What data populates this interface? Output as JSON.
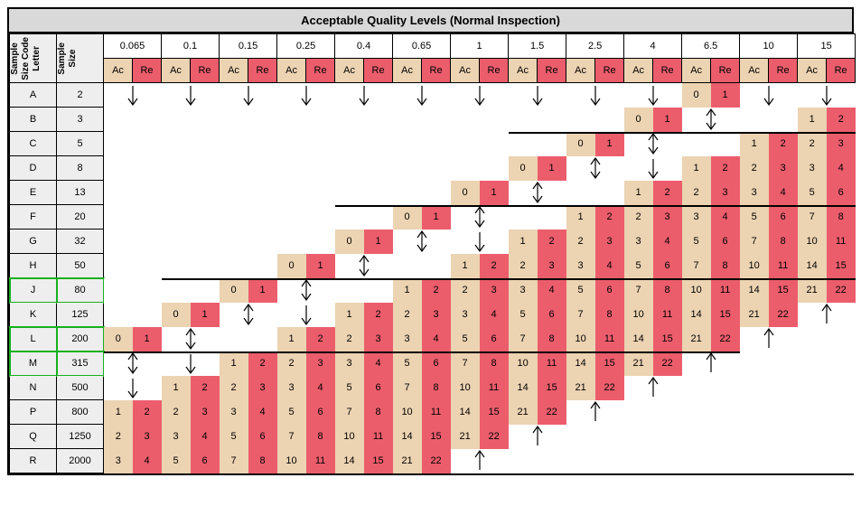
{
  "title": "Acceptable Quality Levels (Normal Inspection)",
  "headers": {
    "code_letter": "Sample\nSize Code\nLetter",
    "sample_size": "Sample\nSize",
    "ac": "Ac",
    "re": "Re"
  },
  "aql_levels": [
    "0.065",
    "0.1",
    "0.15",
    "0.25",
    "0.4",
    "0.65",
    "1",
    "1.5",
    "2.5",
    "4",
    "6.5",
    "10",
    "15"
  ],
  "codes": [
    "A",
    "B",
    "C",
    "D",
    "E",
    "F",
    "G",
    "H",
    "J",
    "K",
    "L",
    "M",
    "N",
    "P",
    "Q",
    "R"
  ],
  "sizes": [
    "2",
    "3",
    "5",
    "8",
    "13",
    "20",
    "32",
    "50",
    "80",
    "125",
    "200",
    "315",
    "500",
    "800",
    "1250",
    "2000"
  ],
  "highlighted_rows": [
    "J",
    "L",
    "M"
  ],
  "colors": {
    "ac_bg": "#ecd3b2",
    "re_bg": "#ec5d6c",
    "header_bg": "#d9d9d9",
    "left_bg": "#eeeeee",
    "highlight": "#17b01f"
  },
  "arrow_glyphs": {
    "down": "↓",
    "up": "↑",
    "updown": "↕"
  },
  "grid_comment": "Each row: 13 AQL columns. Per column: {t:'v',ac,re} | {t:'a',d:'down'|'up'|'updown'} | {t:'b'} blank. 'line' marks thick top border start.",
  "grid": {
    "A": [
      {
        "t": "a",
        "d": "down"
      },
      {
        "t": "a",
        "d": "down"
      },
      {
        "t": "a",
        "d": "down"
      },
      {
        "t": "a",
        "d": "down"
      },
      {
        "t": "a",
        "d": "down"
      },
      {
        "t": "a",
        "d": "down"
      },
      {
        "t": "a",
        "d": "down"
      },
      {
        "t": "a",
        "d": "down"
      },
      {
        "t": "a",
        "d": "down"
      },
      {
        "t": "a",
        "d": "down"
      },
      {
        "t": "v",
        "ac": "0",
        "re": "1"
      },
      {
        "t": "a",
        "d": "down"
      },
      {
        "t": "a",
        "d": "down"
      }
    ],
    "B": [
      {
        "t": "b"
      },
      {
        "t": "b"
      },
      {
        "t": "b"
      },
      {
        "t": "b"
      },
      {
        "t": "b"
      },
      {
        "t": "b"
      },
      {
        "t": "b"
      },
      {
        "t": "b"
      },
      {
        "t": "b"
      },
      {
        "t": "v",
        "ac": "0",
        "re": "1"
      },
      {
        "t": "a",
        "d": "updown"
      },
      {
        "t": "b"
      },
      {
        "t": "v",
        "ac": "1",
        "re": "2"
      }
    ],
    "C": [
      {
        "t": "b"
      },
      {
        "t": "b"
      },
      {
        "t": "b"
      },
      {
        "t": "b"
      },
      {
        "t": "b"
      },
      {
        "t": "b"
      },
      {
        "t": "b"
      },
      {
        "t": "b",
        "line": 1
      },
      {
        "t": "v",
        "ac": "0",
        "re": "1",
        "line": 1
      },
      {
        "t": "a",
        "d": "updown",
        "line": 1
      },
      {
        "t": "b",
        "line": 1
      },
      {
        "t": "v",
        "ac": "1",
        "re": "2",
        "line": 1
      },
      {
        "t": "v",
        "ac": "2",
        "re": "3",
        "line": 1
      }
    ],
    "D": [
      {
        "t": "b"
      },
      {
        "t": "b"
      },
      {
        "t": "b"
      },
      {
        "t": "b"
      },
      {
        "t": "b"
      },
      {
        "t": "b"
      },
      {
        "t": "b"
      },
      {
        "t": "v",
        "ac": "0",
        "re": "1"
      },
      {
        "t": "a",
        "d": "updown"
      },
      {
        "t": "a",
        "d": "down"
      },
      {
        "t": "v",
        "ac": "1",
        "re": "2"
      },
      {
        "t": "v",
        "ac": "2",
        "re": "3"
      },
      {
        "t": "v",
        "ac": "3",
        "re": "4"
      }
    ],
    "E": [
      {
        "t": "b"
      },
      {
        "t": "b"
      },
      {
        "t": "b"
      },
      {
        "t": "b"
      },
      {
        "t": "b"
      },
      {
        "t": "b"
      },
      {
        "t": "v",
        "ac": "0",
        "re": "1"
      },
      {
        "t": "a",
        "d": "updown"
      },
      {
        "t": "b"
      },
      {
        "t": "v",
        "ac": "1",
        "re": "2"
      },
      {
        "t": "v",
        "ac": "2",
        "re": "3"
      },
      {
        "t": "v",
        "ac": "3",
        "re": "4"
      },
      {
        "t": "v",
        "ac": "5",
        "re": "6"
      }
    ],
    "F": [
      {
        "t": "b"
      },
      {
        "t": "b"
      },
      {
        "t": "b"
      },
      {
        "t": "b"
      },
      {
        "t": "b",
        "line": 1
      },
      {
        "t": "v",
        "ac": "0",
        "re": "1",
        "line": 1
      },
      {
        "t": "a",
        "d": "updown",
        "line": 1
      },
      {
        "t": "b",
        "line": 1
      },
      {
        "t": "v",
        "ac": "1",
        "re": "2",
        "line": 1
      },
      {
        "t": "v",
        "ac": "2",
        "re": "3",
        "line": 1
      },
      {
        "t": "v",
        "ac": "3",
        "re": "4",
        "line": 1
      },
      {
        "t": "v",
        "ac": "5",
        "re": "6",
        "line": 1
      },
      {
        "t": "v",
        "ac": "7",
        "re": "8",
        "line": 1
      }
    ],
    "G": [
      {
        "t": "b"
      },
      {
        "t": "b"
      },
      {
        "t": "b"
      },
      {
        "t": "b"
      },
      {
        "t": "v",
        "ac": "0",
        "re": "1"
      },
      {
        "t": "a",
        "d": "updown"
      },
      {
        "t": "a",
        "d": "down"
      },
      {
        "t": "v",
        "ac": "1",
        "re": "2"
      },
      {
        "t": "v",
        "ac": "2",
        "re": "3"
      },
      {
        "t": "v",
        "ac": "3",
        "re": "4"
      },
      {
        "t": "v",
        "ac": "5",
        "re": "6"
      },
      {
        "t": "v",
        "ac": "7",
        "re": "8"
      },
      {
        "t": "v",
        "ac": "10",
        "re": "11"
      }
    ],
    "H": [
      {
        "t": "b"
      },
      {
        "t": "b"
      },
      {
        "t": "b"
      },
      {
        "t": "v",
        "ac": "0",
        "re": "1"
      },
      {
        "t": "a",
        "d": "updown"
      },
      {
        "t": "b"
      },
      {
        "t": "v",
        "ac": "1",
        "re": "2"
      },
      {
        "t": "v",
        "ac": "2",
        "re": "3"
      },
      {
        "t": "v",
        "ac": "3",
        "re": "4"
      },
      {
        "t": "v",
        "ac": "5",
        "re": "6"
      },
      {
        "t": "v",
        "ac": "7",
        "re": "8"
      },
      {
        "t": "v",
        "ac": "10",
        "re": "11"
      },
      {
        "t": "v",
        "ac": "14",
        "re": "15"
      }
    ],
    "J": [
      {
        "t": "b"
      },
      {
        "t": "b",
        "line": 1
      },
      {
        "t": "v",
        "ac": "0",
        "re": "1",
        "line": 1
      },
      {
        "t": "a",
        "d": "updown",
        "line": 1
      },
      {
        "t": "b",
        "line": 1
      },
      {
        "t": "v",
        "ac": "1",
        "re": "2",
        "line": 1
      },
      {
        "t": "v",
        "ac": "2",
        "re": "3",
        "line": 1
      },
      {
        "t": "v",
        "ac": "3",
        "re": "4",
        "line": 1
      },
      {
        "t": "v",
        "ac": "5",
        "re": "6",
        "line": 1
      },
      {
        "t": "v",
        "ac": "7",
        "re": "8",
        "line": 1
      },
      {
        "t": "v",
        "ac": "10",
        "re": "11",
        "line": 1
      },
      {
        "t": "v",
        "ac": "14",
        "re": "15",
        "line": 1
      },
      {
        "t": "v",
        "ac": "21",
        "re": "22",
        "line": 1
      }
    ],
    "K": [
      {
        "t": "b"
      },
      {
        "t": "v",
        "ac": "0",
        "re": "1"
      },
      {
        "t": "a",
        "d": "updown"
      },
      {
        "t": "a",
        "d": "down"
      },
      {
        "t": "v",
        "ac": "1",
        "re": "2"
      },
      {
        "t": "v",
        "ac": "2",
        "re": "3"
      },
      {
        "t": "v",
        "ac": "3",
        "re": "4"
      },
      {
        "t": "v",
        "ac": "5",
        "re": "6"
      },
      {
        "t": "v",
        "ac": "7",
        "re": "8"
      },
      {
        "t": "v",
        "ac": "10",
        "re": "11"
      },
      {
        "t": "v",
        "ac": "14",
        "re": "15"
      },
      {
        "t": "v",
        "ac": "21",
        "re": "22"
      },
      {
        "t": "a",
        "d": "up"
      }
    ],
    "L": [
      {
        "t": "v",
        "ac": "0",
        "re": "1"
      },
      {
        "t": "a",
        "d": "updown"
      },
      {
        "t": "b"
      },
      {
        "t": "v",
        "ac": "1",
        "re": "2"
      },
      {
        "t": "v",
        "ac": "2",
        "re": "3"
      },
      {
        "t": "v",
        "ac": "3",
        "re": "4"
      },
      {
        "t": "v",
        "ac": "5",
        "re": "6"
      },
      {
        "t": "v",
        "ac": "7",
        "re": "8"
      },
      {
        "t": "v",
        "ac": "10",
        "re": "11"
      },
      {
        "t": "v",
        "ac": "14",
        "re": "15"
      },
      {
        "t": "v",
        "ac": "21",
        "re": "22"
      },
      {
        "t": "a",
        "d": "up"
      },
      {
        "t": "b"
      }
    ],
    "M": [
      {
        "t": "a",
        "d": "updown",
        "line": 1
      },
      {
        "t": "a",
        "d": "down",
        "line": 1
      },
      {
        "t": "v",
        "ac": "1",
        "re": "2",
        "line": 1
      },
      {
        "t": "v",
        "ac": "2",
        "re": "3",
        "line": 1
      },
      {
        "t": "v",
        "ac": "3",
        "re": "4",
        "line": 1
      },
      {
        "t": "v",
        "ac": "5",
        "re": "6",
        "line": 1
      },
      {
        "t": "v",
        "ac": "7",
        "re": "8",
        "line": 1
      },
      {
        "t": "v",
        "ac": "10",
        "re": "11",
        "line": 1
      },
      {
        "t": "v",
        "ac": "14",
        "re": "15",
        "line": 1
      },
      {
        "t": "v",
        "ac": "21",
        "re": "22",
        "line": 1
      },
      {
        "t": "a",
        "d": "up",
        "line": 1
      },
      {
        "t": "b"
      },
      {
        "t": "b"
      }
    ],
    "N": [
      {
        "t": "a",
        "d": "down"
      },
      {
        "t": "v",
        "ac": "1",
        "re": "2"
      },
      {
        "t": "v",
        "ac": "2",
        "re": "3"
      },
      {
        "t": "v",
        "ac": "3",
        "re": "4"
      },
      {
        "t": "v",
        "ac": "5",
        "re": "6"
      },
      {
        "t": "v",
        "ac": "7",
        "re": "8"
      },
      {
        "t": "v",
        "ac": "10",
        "re": "11"
      },
      {
        "t": "v",
        "ac": "14",
        "re": "15"
      },
      {
        "t": "v",
        "ac": "21",
        "re": "22"
      },
      {
        "t": "a",
        "d": "up"
      },
      {
        "t": "b"
      },
      {
        "t": "b"
      },
      {
        "t": "b"
      }
    ],
    "P": [
      {
        "t": "v",
        "ac": "1",
        "re": "2"
      },
      {
        "t": "v",
        "ac": "2",
        "re": "3"
      },
      {
        "t": "v",
        "ac": "3",
        "re": "4"
      },
      {
        "t": "v",
        "ac": "5",
        "re": "6"
      },
      {
        "t": "v",
        "ac": "7",
        "re": "8"
      },
      {
        "t": "v",
        "ac": "10",
        "re": "11"
      },
      {
        "t": "v",
        "ac": "14",
        "re": "15"
      },
      {
        "t": "v",
        "ac": "21",
        "re": "22"
      },
      {
        "t": "a",
        "d": "up"
      },
      {
        "t": "b"
      },
      {
        "t": "b"
      },
      {
        "t": "b"
      },
      {
        "t": "b"
      }
    ],
    "Q": [
      {
        "t": "v",
        "ac": "2",
        "re": "3"
      },
      {
        "t": "v",
        "ac": "3",
        "re": "4"
      },
      {
        "t": "v",
        "ac": "5",
        "re": "6"
      },
      {
        "t": "v",
        "ac": "7",
        "re": "8"
      },
      {
        "t": "v",
        "ac": "10",
        "re": "11"
      },
      {
        "t": "v",
        "ac": "14",
        "re": "15"
      },
      {
        "t": "v",
        "ac": "21",
        "re": "22"
      },
      {
        "t": "a",
        "d": "up"
      },
      {
        "t": "b"
      },
      {
        "t": "b"
      },
      {
        "t": "b"
      },
      {
        "t": "b"
      },
      {
        "t": "b"
      }
    ],
    "R": [
      {
        "t": "v",
        "ac": "3",
        "re": "4"
      },
      {
        "t": "v",
        "ac": "5",
        "re": "6"
      },
      {
        "t": "v",
        "ac": "7",
        "re": "8"
      },
      {
        "t": "v",
        "ac": "10",
        "re": "11"
      },
      {
        "t": "v",
        "ac": "14",
        "re": "15"
      },
      {
        "t": "v",
        "ac": "21",
        "re": "22"
      },
      {
        "t": "a",
        "d": "up"
      },
      {
        "t": "b"
      },
      {
        "t": "b"
      },
      {
        "t": "b"
      },
      {
        "t": "b"
      },
      {
        "t": "b"
      },
      {
        "t": "b"
      }
    ]
  }
}
